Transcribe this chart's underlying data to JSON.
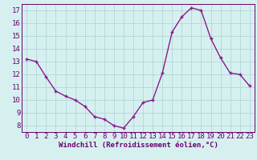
{
  "x": [
    0,
    1,
    2,
    3,
    4,
    5,
    6,
    7,
    8,
    9,
    10,
    11,
    12,
    13,
    14,
    15,
    16,
    17,
    18,
    19,
    20,
    21,
    22,
    23
  ],
  "y": [
    13.2,
    13.0,
    11.8,
    10.7,
    10.3,
    10.0,
    9.5,
    8.7,
    8.5,
    8.0,
    7.8,
    8.7,
    9.8,
    10.0,
    12.1,
    15.3,
    16.5,
    17.2,
    17.0,
    14.8,
    13.3,
    12.1,
    12.0,
    11.1
  ],
  "line_color": "#8b1a8b",
  "marker": "+",
  "bg_color": "#d6f0f0",
  "grid_color": "#b0d8d8",
  "xlabel": "Windchill (Refroidissement éolien,°C)",
  "ylabel_ticks": [
    8,
    9,
    10,
    11,
    12,
    13,
    14,
    15,
    16,
    17
  ],
  "xlim": [
    -0.5,
    23.5
  ],
  "ylim": [
    7.5,
    17.5
  ],
  "xticks": [
    0,
    1,
    2,
    3,
    4,
    5,
    6,
    7,
    8,
    9,
    10,
    11,
    12,
    13,
    14,
    15,
    16,
    17,
    18,
    19,
    20,
    21,
    22,
    23
  ],
  "axis_color": "#6b006b",
  "xlabel_fontsize": 6.5,
  "tick_fontsize": 6.5,
  "linewidth": 1.0,
  "markersize": 3.5,
  "markeredgewidth": 1.0
}
